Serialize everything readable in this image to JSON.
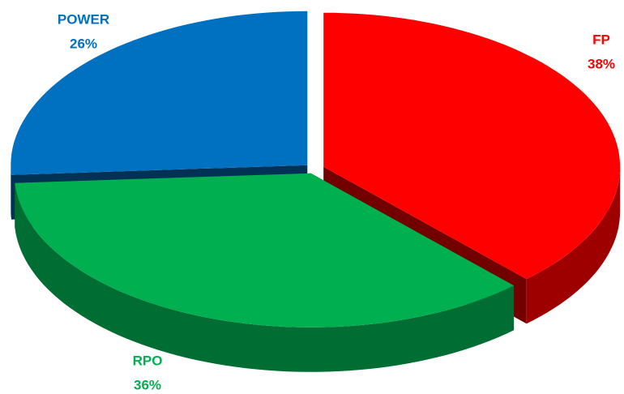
{
  "chart_data": {
    "type": "pie3d",
    "categories": [
      "FP",
      "RPO",
      "POWER"
    ],
    "values": [
      38,
      36,
      26
    ],
    "value_labels": [
      "38%",
      "36%",
      "26%"
    ],
    "colors": [
      "#ff0000",
      "#00b050",
      "#0070c0"
    ]
  }
}
